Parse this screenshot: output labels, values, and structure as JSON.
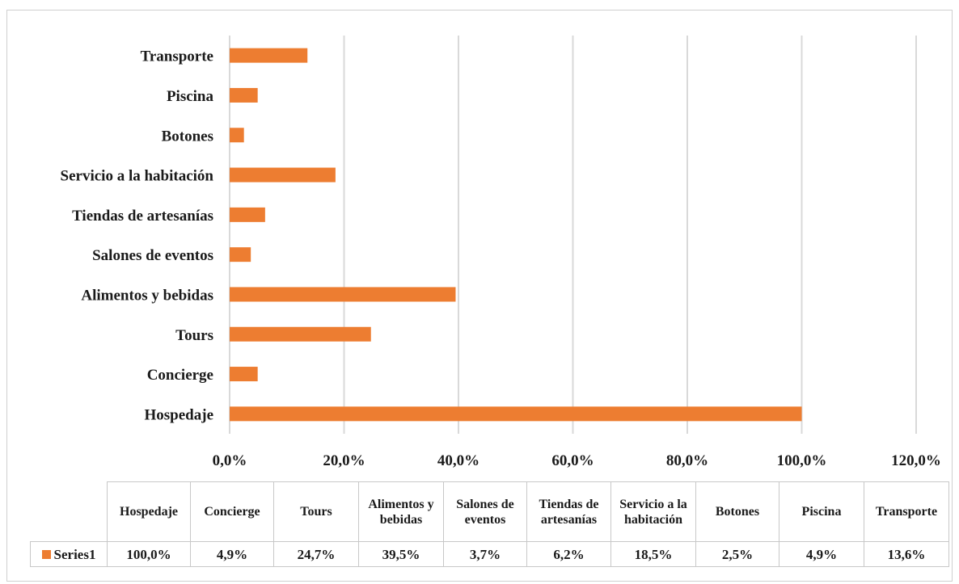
{
  "chart_data": {
    "type": "bar",
    "orientation": "horizontal",
    "categories": [
      "Hospedaje",
      "Concierge",
      "Tours",
      "Alimentos y bebidas",
      "Salones de eventos",
      "Tiendas de artesanías",
      "Servicio a la habitación",
      "Botones",
      "Piscina",
      "Transporte"
    ],
    "series": [
      {
        "name": "Series1",
        "values": [
          100.0,
          4.9,
          24.7,
          39.5,
          3.7,
          6.2,
          18.5,
          2.5,
          4.9,
          13.6
        ],
        "color": "#ed7d31"
      }
    ],
    "xlim": [
      0,
      120
    ],
    "xticks": [
      "0,0%",
      "20,0%",
      "40,0%",
      "60,0%",
      "80,0%",
      "100,0%",
      "120,0%"
    ],
    "grid": true,
    "legend": "data-table",
    "title": "",
    "xlabel": "",
    "ylabel": ""
  },
  "data_table": {
    "headers": [
      "Hospedaje",
      "Concierge",
      "Tours",
      "Alimentos y bebidas",
      "Salones de eventos",
      "Tiendas de artesanías",
      "Servicio a la habitación",
      "Botones",
      "Piscina",
      "Transporte"
    ],
    "series_label": "Series1",
    "values": [
      "100,0%",
      "4,9%",
      "24,7%",
      "39,5%",
      "3,7%",
      "6,2%",
      "18,5%",
      "2,5%",
      "4,9%",
      "13,6%"
    ]
  }
}
